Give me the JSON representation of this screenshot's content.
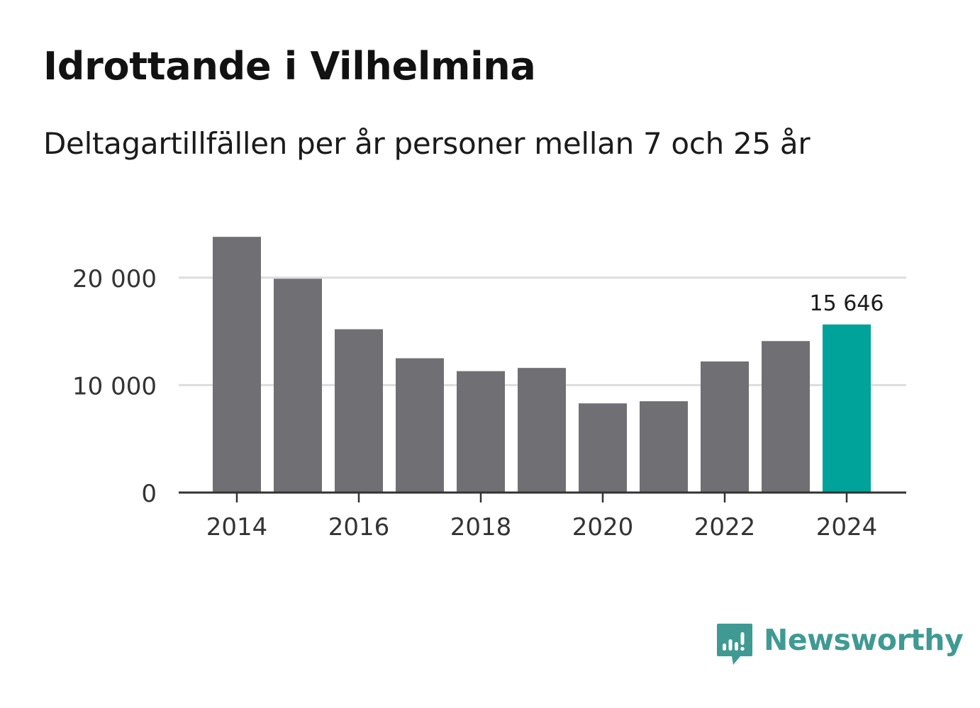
{
  "chart_data": {
    "type": "bar",
    "title": "Idrottande i Vilhelmina",
    "subtitle": "Deltagartillfällen per år personer mellan 7 och 25 år",
    "categories": [
      "2014",
      "2015",
      "2016",
      "2017",
      "2018",
      "2019",
      "2020",
      "2021",
      "2022",
      "2023",
      "2024"
    ],
    "values": [
      23800,
      19900,
      15200,
      12500,
      11300,
      11600,
      8300,
      8500,
      12200,
      14100,
      15646
    ],
    "x_tick_labels": [
      "2014",
      "2016",
      "2018",
      "2020",
      "2022",
      "2024"
    ],
    "y_tick_values": [
      0,
      10000,
      20000
    ],
    "y_tick_labels": [
      "0",
      "10 000",
      "20 000"
    ],
    "ylim": [
      0,
      25000
    ],
    "xlabel": "",
    "ylabel": "",
    "grid": true,
    "highlight": {
      "category": "2024",
      "label": "15 646"
    },
    "colors": {
      "bar": "#706f74",
      "highlight": "#00a399",
      "grid": "#dddddd",
      "axis": "#333333"
    }
  },
  "branding": {
    "logo_text": "Newsworthy",
    "logo_icon": "newsworthy-chart-bubble-icon",
    "color": "#3f9a93"
  }
}
